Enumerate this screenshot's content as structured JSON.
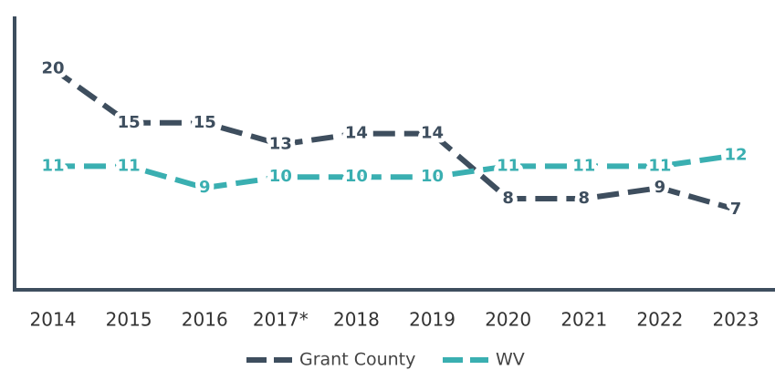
{
  "chart_data": {
    "type": "line",
    "categories": [
      "2014",
      "2015",
      "2016",
      "2017*",
      "2018",
      "2019",
      "2020",
      "2021",
      "2022",
      "2023"
    ],
    "series": [
      {
        "name": "Grant County",
        "color": "#3e4e5e",
        "values": [
          20,
          15,
          15,
          13,
          14,
          14,
          8,
          8,
          9,
          7
        ]
      },
      {
        "name": "WV",
        "color": "#3aafb1",
        "values": [
          11,
          11,
          9,
          10,
          10,
          10,
          11,
          11,
          11,
          12
        ]
      }
    ],
    "ylim": [
      0,
      25
    ]
  }
}
